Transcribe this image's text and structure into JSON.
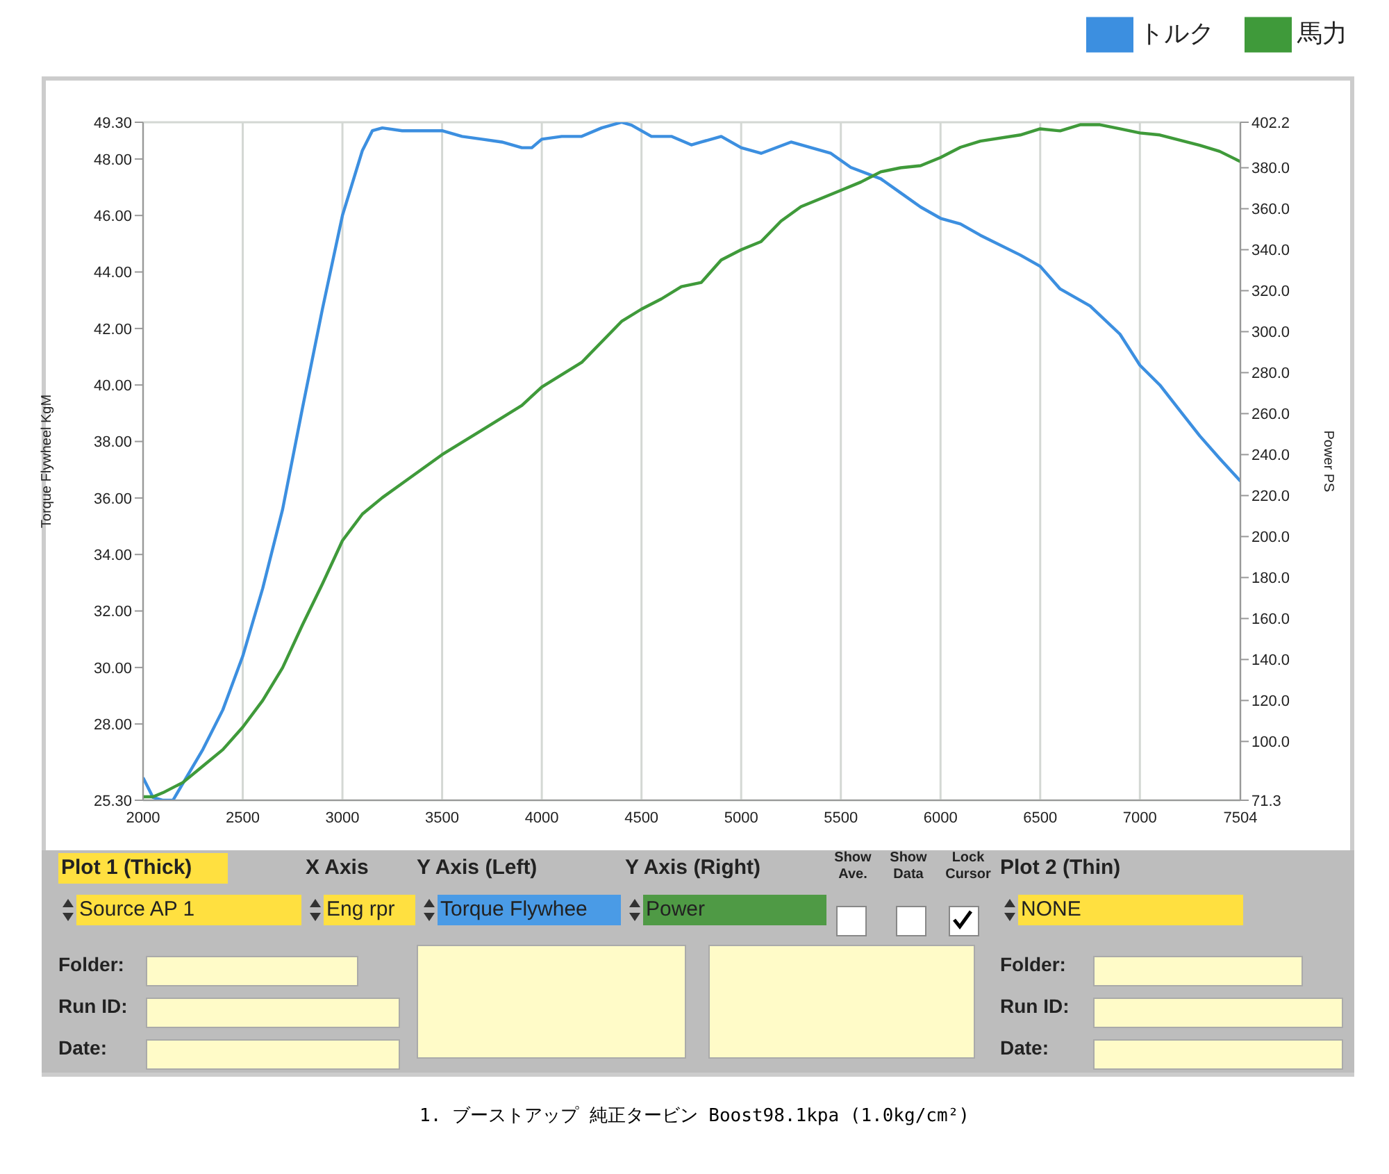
{
  "chart_data": {
    "type": "line",
    "ylabel": "Torque Flywheel KgM",
    "y2label": "Power PS",
    "legend": "top right",
    "grid": true,
    "xlim": [
      2000,
      7504
    ],
    "xticks": [
      2000,
      2500,
      3000,
      3500,
      4000,
      4500,
      5000,
      5500,
      6000,
      6500,
      7000,
      7504
    ],
    "ylim": [
      25.3,
      49.3
    ],
    "yticks": [
      {
        "value": 25.3,
        "label": "25.30"
      },
      {
        "value": 28,
        "label": "28.00"
      },
      {
        "value": 30,
        "label": "30.00"
      },
      {
        "value": 32,
        "label": "32.00"
      },
      {
        "value": 34,
        "label": "34.00"
      },
      {
        "value": 36,
        "label": "36.00"
      },
      {
        "value": 38,
        "label": "38.00"
      },
      {
        "value": 40,
        "label": "40.00"
      },
      {
        "value": 42,
        "label": "42.00"
      },
      {
        "value": 44,
        "label": "44.00"
      },
      {
        "value": 46,
        "label": "46.00"
      },
      {
        "value": 48,
        "label": "48.00"
      },
      {
        "value": 49.3,
        "label": "49.30"
      }
    ],
    "y2lim": [
      71.3,
      402.2
    ],
    "y2ticks": [
      71.3,
      {
        "value": 100,
        "label": "100.0"
      },
      {
        "value": 120,
        "label": "120.0"
      },
      {
        "value": 140,
        "label": "140.0"
      },
      {
        "value": 160,
        "label": "160.0"
      },
      {
        "value": 180,
        "label": "180.0"
      },
      {
        "value": 200,
        "label": "200.0"
      },
      {
        "value": 220,
        "label": "220.0"
      },
      {
        "value": 240,
        "label": "240.0"
      },
      {
        "value": 260,
        "label": "260.0"
      },
      {
        "value": 280,
        "label": "280.0"
      },
      {
        "value": 300,
        "label": "300.0"
      },
      {
        "value": 320,
        "label": "320.0"
      },
      {
        "value": 340,
        "label": "340.0"
      },
      {
        "value": 360,
        "label": "360.0"
      },
      {
        "value": 380,
        "label": "380.0"
      },
      402.2
    ],
    "series": [
      {
        "name": "トルク",
        "color": "#3c8fe0",
        "x": [
          2000,
          2050,
          2100,
          2150,
          2200,
          2300,
          2400,
          2500,
          2600,
          2700,
          2800,
          2900,
          3000,
          3100,
          3150,
          3200,
          3300,
          3500,
          3600,
          3700,
          3800,
          3900,
          3950,
          4000,
          4100,
          4200,
          4300,
          4400,
          4450,
          4550,
          4650,
          4750,
          4800,
          4900,
          5000,
          5100,
          5250,
          5450,
          5550,
          5700,
          5800,
          5900,
          6000,
          6100,
          6200,
          6400,
          6500,
          6600,
          6750,
          6900,
          7000,
          7100,
          7200,
          7300,
          7400,
          7504
        ],
        "values": [
          26.1,
          25.4,
          25.3,
          25.3,
          25.9,
          27.1,
          28.5,
          30.4,
          32.8,
          35.6,
          39.2,
          42.7,
          46.0,
          48.3,
          49.0,
          49.1,
          49.0,
          49.0,
          48.8,
          48.7,
          48.6,
          48.4,
          48.4,
          48.7,
          48.8,
          48.8,
          49.1,
          49.3,
          49.2,
          48.8,
          48.8,
          48.5,
          48.6,
          48.8,
          48.4,
          48.2,
          48.6,
          48.2,
          47.7,
          47.3,
          46.8,
          46.3,
          45.9,
          45.7,
          45.3,
          44.6,
          44.2,
          43.4,
          42.8,
          41.8,
          40.7,
          40.0,
          39.1,
          38.2,
          37.4,
          36.6
        ]
      },
      {
        "name": "馬力",
        "color": "#3f9a3a",
        "axis": "y2",
        "x": [
          2000,
          2050,
          2100,
          2200,
          2300,
          2400,
          2500,
          2600,
          2700,
          2800,
          2900,
          3000,
          3100,
          3200,
          3300,
          3500,
          3700,
          3900,
          4000,
          4200,
          4400,
          4500,
          4600,
          4700,
          4800,
          4900,
          5000,
          5100,
          5200,
          5300,
          5400,
          5500,
          5600,
          5700,
          5800,
          5900,
          6000,
          6100,
          6200,
          6400,
          6500,
          6600,
          6700,
          6800,
          6900,
          7000,
          7100,
          7300,
          7400,
          7504
        ],
        "values": [
          73,
          73,
          75,
          80,
          88,
          96,
          107,
          120,
          136,
          157,
          177,
          198,
          211,
          219,
          226,
          240,
          252,
          264,
          273,
          285,
          305,
          311,
          316,
          322,
          324,
          335,
          340,
          344,
          354,
          361,
          365,
          369,
          373,
          378,
          380,
          381,
          385,
          390,
          393,
          396,
          399,
          398,
          401,
          401,
          399,
          397,
          396,
          391,
          388,
          383
        ]
      }
    ],
    "annotations": [
      "1. ブーストアップ 純正タービン Boost98.1kpa (1.0kg/cm²)",
      "Plot 1 (Thick)",
      "X Axis",
      "Y Axis (Left)",
      "Y Axis (Right)",
      "Show Ave.",
      "Show Data",
      "Lock Cursor",
      "Plot 2 (Thin)",
      "Source AP 1",
      "Eng rpr",
      "Torque Flywhee",
      "Power",
      "NONE",
      "Folder:",
      "Run ID:",
      "Date:",
      "Folder:",
      "Run ID:",
      "Date:"
    ]
  }
}
